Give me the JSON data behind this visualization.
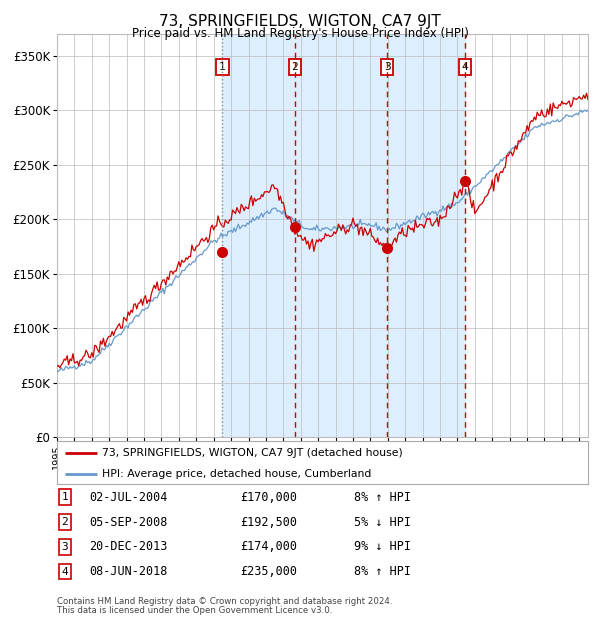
{
  "title": "73, SPRINGFIELDS, WIGTON, CA7 9JT",
  "subtitle": "Price paid vs. HM Land Registry's House Price Index (HPI)",
  "legend_label_red": "73, SPRINGFIELDS, WIGTON, CA7 9JT (detached house)",
  "legend_label_blue": "HPI: Average price, detached house, Cumberland",
  "footnote1": "Contains HM Land Registry data © Crown copyright and database right 2024.",
  "footnote2": "This data is licensed under the Open Government Licence v3.0.",
  "sales": [
    {
      "num": 1,
      "date": "02-JUL-2004",
      "price": 170000,
      "pct": "8%",
      "dir": "↑",
      "dashed": false
    },
    {
      "num": 2,
      "date": "05-SEP-2008",
      "price": 192500,
      "pct": "5%",
      "dir": "↓",
      "dashed": true
    },
    {
      "num": 3,
      "date": "20-DEC-2013",
      "price": 174000,
      "pct": "9%",
      "dir": "↓",
      "dashed": true
    },
    {
      "num": 4,
      "date": "08-JUN-2018",
      "price": 235000,
      "pct": "8%",
      "dir": "↑",
      "dashed": true
    }
  ],
  "sale_dates_decimal": [
    2004.5,
    2008.67,
    2013.97,
    2018.44
  ],
  "ylim": [
    0,
    370000
  ],
  "yticks": [
    0,
    50000,
    100000,
    150000,
    200000,
    250000,
    300000,
    350000
  ],
  "ytick_labels": [
    "£0",
    "£50K",
    "£100K",
    "£150K",
    "£200K",
    "£250K",
    "£300K",
    "£350K"
  ],
  "color_red": "#cc0000",
  "color_blue": "#6699cc",
  "color_shade": "#ddeeff",
  "color_grid": "#bbbbbb",
  "background_color": "#ffffff",
  "xlim_start": 1995,
  "xlim_end": 2025.5
}
